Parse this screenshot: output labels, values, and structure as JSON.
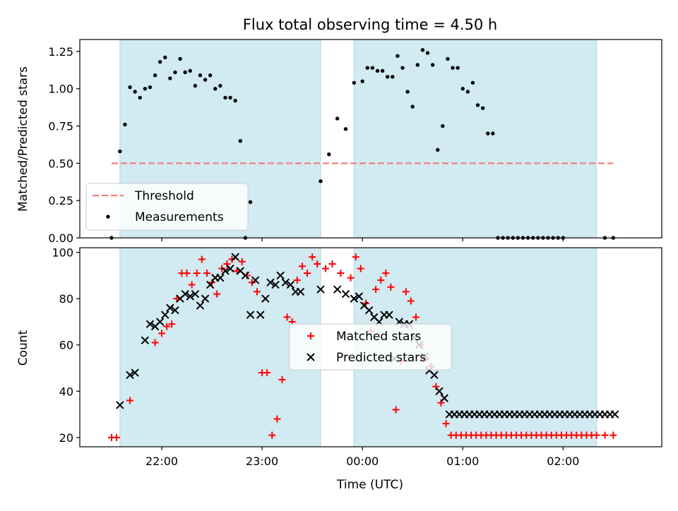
{
  "chart_data": [
    {
      "type": "scatter",
      "title": "Flux total observing time = 4.50 h",
      "ylabel": "Matched/Predicted stars",
      "xlabel": "",
      "ylim": [
        0,
        1.33
      ],
      "xlim": [
        "21:11",
        "02:59"
      ],
      "x_time_hours": true,
      "grid": false,
      "legend_position": "lower-left",
      "shaded_intervals": [
        [
          "21:35",
          "23:35"
        ],
        [
          "23:55",
          "02:20"
        ]
      ],
      "shade_color": "#add8e6",
      "yticks": [
        0.0,
        0.25,
        0.5,
        0.75,
        1.0,
        1.25
      ],
      "yticklabels": [
        "0.00",
        "0.25",
        "0.50",
        "0.75",
        "1.00",
        "1.25"
      ],
      "threshold": {
        "name": "Threshold",
        "value": 0.5,
        "x_range": [
          "21:30",
          "02:30"
        ],
        "color": "#f08080",
        "style": "dashed"
      },
      "series": [
        {
          "name": "Measurements",
          "marker": "dot",
          "color": "#000000",
          "x": [
            "21:30",
            "21:35",
            "21:38",
            "21:41",
            "21:44",
            "21:47",
            "21:50",
            "21:53",
            "21:56",
            "21:59",
            "22:02",
            "22:05",
            "22:08",
            "22:11",
            "22:14",
            "22:17",
            "22:20",
            "22:23",
            "22:26",
            "22:29",
            "22:32",
            "22:35",
            "22:38",
            "22:41",
            "22:44",
            "22:47",
            "22:50",
            "22:53",
            "23:35",
            "23:40",
            "23:45",
            "23:50",
            "23:55",
            "00:00",
            "00:03",
            "00:06",
            "00:09",
            "00:12",
            "00:15",
            "00:18",
            "00:21",
            "00:24",
            "00:27",
            "00:30",
            "00:33",
            "00:36",
            "00:39",
            "00:42",
            "00:45",
            "00:48",
            "00:51",
            "00:54",
            "00:57",
            "01:00",
            "01:03",
            "01:06",
            "01:09",
            "01:12",
            "01:15",
            "01:18",
            "01:21",
            "01:24",
            "01:27",
            "01:30",
            "01:33",
            "01:36",
            "01:39",
            "01:42",
            "01:45",
            "01:48",
            "01:51",
            "01:54",
            "01:57",
            "02:00",
            "02:25",
            "02:30"
          ],
          "y": [
            0.0,
            0.58,
            0.76,
            1.01,
            0.98,
            0.94,
            1.0,
            1.01,
            1.09,
            1.18,
            1.21,
            1.07,
            1.11,
            1.2,
            1.11,
            1.12,
            1.02,
            1.09,
            1.06,
            1.09,
            1.0,
            1.02,
            0.94,
            0.94,
            0.92,
            0.65,
            0.0,
            0.24,
            0.38,
            0.56,
            0.8,
            0.73,
            1.04,
            1.05,
            1.14,
            1.14,
            1.12,
            1.12,
            1.08,
            1.08,
            1.22,
            1.14,
            0.98,
            0.88,
            1.16,
            1.26,
            1.24,
            1.16,
            0.59,
            0.75,
            1.2,
            1.14,
            1.14,
            1.0,
            0.98,
            1.04,
            0.89,
            0.87,
            0.7,
            0.7,
            0.0,
            0.0,
            0.0,
            0.0,
            0.0,
            0.0,
            0.0,
            0.0,
            0.0,
            0.0,
            0.0,
            0.0,
            0.0,
            0.0,
            0.0,
            0.0
          ]
        }
      ]
    },
    {
      "type": "scatter",
      "title": "",
      "ylabel": "Count",
      "xlabel": "Time (UTC)",
      "ylim": [
        16,
        102
      ],
      "xlim": [
        "21:11",
        "02:59"
      ],
      "x_time_hours": true,
      "grid": false,
      "legend_position": "center",
      "shaded_intervals": [
        [
          "21:35",
          "23:35"
        ],
        [
          "23:55",
          "02:20"
        ]
      ],
      "shade_color": "#add8e6",
      "yticks": [
        20,
        40,
        60,
        80,
        100
      ],
      "xticks": [
        "22:00",
        "23:00",
        "00:00",
        "01:00",
        "02:00"
      ],
      "series": [
        {
          "name": "Matched stars",
          "marker": "plus",
          "color": "#ff0000",
          "x": [
            "21:30",
            "21:33",
            "21:41",
            "21:56",
            "22:00",
            "22:03",
            "22:06",
            "22:09",
            "22:12",
            "22:15",
            "22:18",
            "22:21",
            "22:24",
            "22:27",
            "22:30",
            "22:33",
            "22:36",
            "22:39",
            "22:42",
            "22:45",
            "22:48",
            "22:51",
            "22:54",
            "22:57",
            "23:00",
            "23:03",
            "23:06",
            "23:09",
            "23:12",
            "23:15",
            "23:18",
            "23:21",
            "23:24",
            "23:27",
            "23:30",
            "23:33",
            "23:38",
            "23:42",
            "23:47",
            "23:53",
            "23:56",
            "23:59",
            "00:02",
            "00:05",
            "00:08",
            "00:11",
            "00:14",
            "00:17",
            "00:20",
            "00:23",
            "00:26",
            "00:29",
            "00:32",
            "00:35",
            "00:38",
            "00:41",
            "00:44",
            "00:47",
            "00:50",
            "00:53",
            "00:56",
            "00:59",
            "01:02",
            "01:05",
            "01:08",
            "01:11",
            "01:14",
            "01:17",
            "01:20",
            "01:23",
            "01:26",
            "01:29",
            "01:32",
            "01:35",
            "01:38",
            "01:41",
            "01:44",
            "01:47",
            "01:50",
            "01:53",
            "01:56",
            "01:59",
            "02:02",
            "02:05",
            "02:08",
            "02:11",
            "02:14",
            "02:17",
            "02:20",
            "02:25",
            "02:30"
          ],
          "y": [
            20,
            20,
            36,
            61,
            65,
            68,
            69,
            80,
            91,
            91,
            86,
            91,
            97,
            91,
            87,
            82,
            93,
            95,
            97,
            92,
            96,
            90,
            87,
            83,
            48,
            48,
            21,
            28,
            45,
            72,
            70,
            88,
            94,
            91,
            98,
            95,
            93,
            95,
            91,
            89,
            98,
            93,
            78,
            66,
            84,
            88,
            91,
            85,
            32,
            53,
            83,
            79,
            72,
            60,
            54,
            51,
            42,
            35,
            26,
            21,
            21,
            21,
            21,
            21,
            21,
            21,
            21,
            21,
            21,
            21,
            21,
            21,
            21,
            21,
            21,
            21,
            21,
            21,
            21,
            21,
            21,
            21,
            21,
            21,
            21,
            21,
            21,
            21,
            21,
            21,
            21
          ]
        },
        {
          "name": "Predicted stars",
          "marker": "x",
          "color": "#000000",
          "x": [
            "21:35",
            "21:41",
            "21:44",
            "21:50",
            "21:53",
            "21:56",
            "21:59",
            "22:02",
            "22:05",
            "22:08",
            "22:11",
            "22:14",
            "22:17",
            "22:20",
            "22:23",
            "22:26",
            "22:29",
            "22:32",
            "22:35",
            "22:38",
            "22:41",
            "22:44",
            "22:47",
            "22:50",
            "22:53",
            "22:56",
            "22:59",
            "23:02",
            "23:05",
            "23:08",
            "23:11",
            "23:14",
            "23:17",
            "23:20",
            "23:23",
            "23:35",
            "23:45",
            "23:50",
            "23:55",
            "23:58",
            "00:01",
            "00:04",
            "00:07",
            "00:10",
            "00:13",
            "00:16",
            "00:19",
            "00:22",
            "00:25",
            "00:28",
            "00:31",
            "00:34",
            "00:37",
            "00:40",
            "00:43",
            "00:46",
            "00:49",
            "00:52",
            "00:55",
            "00:58",
            "01:01",
            "01:04",
            "01:07",
            "01:10",
            "01:13",
            "01:16",
            "01:19",
            "01:22",
            "01:25",
            "01:28",
            "01:31",
            "01:34",
            "01:37",
            "01:40",
            "01:43",
            "01:46",
            "01:49",
            "01:52",
            "01:55",
            "01:58",
            "02:01",
            "02:04",
            "02:07",
            "02:10",
            "02:13",
            "02:16",
            "02:19",
            "02:22",
            "02:25",
            "02:28",
            "02:31"
          ],
          "y": [
            34,
            47,
            48,
            62,
            69,
            68,
            70,
            73,
            76,
            75,
            80,
            82,
            81,
            82,
            77,
            80,
            86,
            89,
            89,
            92,
            93,
            98,
            92,
            90,
            73,
            88,
            73,
            80,
            87,
            86,
            90,
            87,
            86,
            83,
            83,
            84,
            84,
            82,
            80,
            81,
            77,
            75,
            72,
            70,
            73,
            73,
            54,
            70,
            69,
            69,
            63,
            60,
            55,
            49,
            47,
            40,
            37,
            30,
            30,
            30,
            30,
            30,
            30,
            30,
            30,
            30,
            30,
            30,
            30,
            30,
            30,
            30,
            30,
            30,
            30,
            30,
            30,
            30,
            30,
            30,
            30,
            30,
            30,
            30,
            30,
            30,
            30,
            30,
            30,
            30,
            30
          ]
        }
      ]
    }
  ]
}
